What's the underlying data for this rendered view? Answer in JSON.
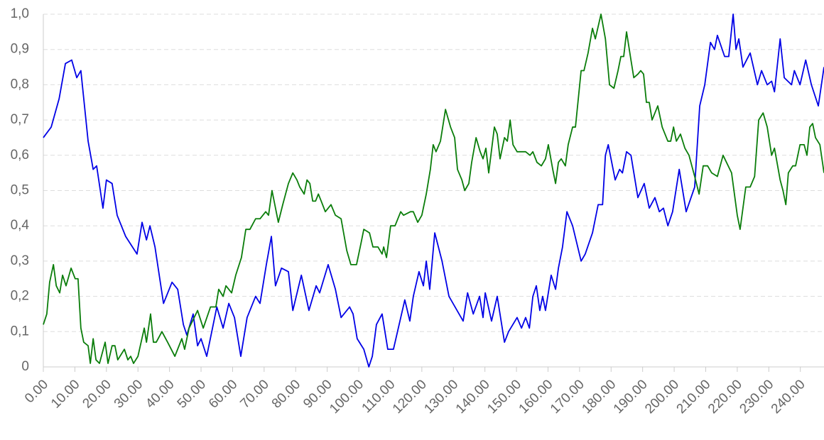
{
  "chart_data": {
    "type": "line",
    "xlim": [
      0,
      247.5
    ],
    "xticks": [
      {
        "value": 0,
        "label": "0.00"
      },
      {
        "value": 10,
        "label": "10.00"
      },
      {
        "value": 20,
        "label": "20.00"
      },
      {
        "value": 30,
        "label": "30.00"
      },
      {
        "value": 40,
        "label": "40.00"
      },
      {
        "value": 50,
        "label": "50.00"
      },
      {
        "value": 60,
        "label": "60.00"
      },
      {
        "value": 70,
        "label": "70.00"
      },
      {
        "value": 80,
        "label": "80.00"
      },
      {
        "value": 90,
        "label": "90.00"
      },
      {
        "value": 100,
        "label": "100.00"
      },
      {
        "value": 110,
        "label": "110.00"
      },
      {
        "value": 120,
        "label": "120.00"
      },
      {
        "value": 130,
        "label": "130.00"
      },
      {
        "value": 140,
        "label": "140.00"
      },
      {
        "value": 150,
        "label": "150.00"
      },
      {
        "value": 160,
        "label": "160.00"
      },
      {
        "value": 170,
        "label": "170.00"
      },
      {
        "value": 180,
        "label": "180.00"
      },
      {
        "value": 190,
        "label": "190.00"
      },
      {
        "value": 200,
        "label": "200.00"
      },
      {
        "value": 210,
        "label": "210.00"
      },
      {
        "value": 220,
        "label": "220.00"
      },
      {
        "value": 230,
        "label": "230.00"
      },
      {
        "value": 240,
        "label": "240.00"
      }
    ],
    "ylim": [
      0,
      1
    ],
    "yticks": [
      0,
      {
        "value": 0.1,
        "label": "0,1"
      },
      {
        "value": 0.2,
        "label": "0,2"
      },
      {
        "value": 0.3,
        "label": "0,3"
      },
      {
        "value": 0.4,
        "label": "0,4"
      },
      {
        "value": 0.5,
        "label": "0,5"
      },
      {
        "value": 0.6,
        "label": "0,6"
      },
      {
        "value": 0.7,
        "label": "0,7"
      },
      {
        "value": 0.8,
        "label": "0,8"
      },
      {
        "value": 0.9,
        "label": "0,9"
      },
      {
        "value": 1,
        "label": "1,0"
      }
    ],
    "grid": true,
    "series": [
      {
        "color": "#0000e6",
        "x": [
          0,
          2.5,
          5.0,
          7.0,
          9.0,
          10.6,
          11.9,
          14.2,
          15.8,
          16.9,
          18.9,
          20.0,
          21.8,
          23.4,
          26.1,
          29.7,
          31.3,
          32.7,
          33.8,
          35.4,
          38.1,
          40.8,
          42.6,
          44.4,
          45.5,
          47.5,
          48.9,
          50.0,
          51.8,
          53.4,
          55.0,
          57.0,
          58.8,
          60.6,
          62.6,
          64.6,
          67.3,
          68.7,
          70.7,
          72.3,
          73.6,
          75.5,
          77.7,
          79.1,
          81.8,
          84.2,
          86.5,
          87.6,
          90.3,
          92.6,
          94.4,
          97.1,
          98.2,
          99.5,
          101.6,
          103.2,
          104.3,
          105.6,
          107.4,
          109.2,
          111.0,
          114.6,
          116.2,
          117.3,
          119.1,
          120.5,
          121.4,
          122.5,
          124.1,
          126.4,
          128.6,
          133.1,
          134.5,
          136.3,
          138.3,
          139.4,
          140.1,
          142.1,
          143.9,
          146.2,
          147.5,
          150.2,
          151.6,
          152.9,
          154.1,
          155.2,
          156.3,
          157.4,
          158.3,
          159.2,
          161.0,
          162.4,
          163.3,
          164.6,
          166.0,
          167.8,
          170.5,
          171.8,
          174.1,
          175.9,
          177.3,
          178.2,
          179.1,
          181.3,
          182.7,
          183.6,
          184.9,
          186.3,
          188.5,
          190.5,
          192.1,
          193.9,
          195.3,
          196.6,
          198.0,
          199.5,
          201.6,
          203.8,
          206.5,
          208.1,
          209.7,
          211.5,
          212.8,
          213.7,
          216.0,
          217.3,
          218.7,
          219.6,
          220.5,
          221.8,
          224.1,
          226.4,
          227.7,
          229.5,
          230.9,
          231.8,
          233.6,
          234.9,
          237.2,
          238.1,
          239.9,
          241.7,
          243.5,
          245.7,
          247.5
        ],
        "values": [
          0.65,
          0.68,
          0.76,
          0.86,
          0.87,
          0.82,
          0.84,
          0.64,
          0.56,
          0.57,
          0.45,
          0.53,
          0.52,
          0.43,
          0.37,
          0.32,
          0.41,
          0.36,
          0.4,
          0.34,
          0.18,
          0.24,
          0.22,
          0.12,
          0.09,
          0.15,
          0.06,
          0.08,
          0.03,
          0.1,
          0.17,
          0.11,
          0.18,
          0.14,
          0.03,
          0.14,
          0.2,
          0.18,
          0.29,
          0.37,
          0.23,
          0.28,
          0.27,
          0.16,
          0.26,
          0.16,
          0.23,
          0.21,
          0.29,
          0.22,
          0.14,
          0.17,
          0.15,
          0.08,
          0.05,
          0.0,
          0.03,
          0.12,
          0.15,
          0.05,
          0.05,
          0.19,
          0.13,
          0.2,
          0.27,
          0.23,
          0.3,
          0.22,
          0.38,
          0.3,
          0.2,
          0.13,
          0.21,
          0.15,
          0.2,
          0.14,
          0.21,
          0.13,
          0.2,
          0.07,
          0.1,
          0.14,
          0.11,
          0.14,
          0.11,
          0.2,
          0.23,
          0.16,
          0.2,
          0.16,
          0.26,
          0.22,
          0.28,
          0.34,
          0.44,
          0.4,
          0.3,
          0.32,
          0.38,
          0.46,
          0.46,
          0.6,
          0.63,
          0.53,
          0.56,
          0.55,
          0.61,
          0.6,
          0.48,
          0.52,
          0.45,
          0.48,
          0.44,
          0.45,
          0.4,
          0.44,
          0.56,
          0.44,
          0.51,
          0.74,
          0.8,
          0.92,
          0.9,
          0.94,
          0.88,
          0.88,
          1.0,
          0.9,
          0.93,
          0.85,
          0.89,
          0.8,
          0.84,
          0.8,
          0.81,
          0.78,
          0.93,
          0.82,
          0.8,
          0.84,
          0.8,
          0.87,
          0.8,
          0.74,
          0.85
        ]
      },
      {
        "color": "#0a7d0a",
        "x": [
          0,
          1.1,
          2.0,
          3.2,
          4.1,
          5.2,
          6.1,
          7.2,
          8.8,
          10.1,
          11.0,
          11.9,
          12.8,
          14.2,
          14.9,
          15.8,
          16.7,
          17.8,
          19.6,
          20.5,
          21.8,
          22.7,
          23.6,
          25.7,
          26.8,
          27.7,
          28.6,
          30.0,
          32.0,
          32.7,
          34.0,
          34.9,
          35.8,
          37.6,
          39.4,
          41.7,
          43.9,
          44.8,
          46.2,
          48.9,
          50.7,
          53.0,
          54.7,
          55.6,
          57.0,
          57.9,
          59.7,
          61.0,
          62.8,
          64.2,
          65.5,
          67.3,
          68.7,
          70.5,
          71.4,
          72.5,
          74.5,
          75.9,
          77.7,
          79.1,
          80.4,
          81.3,
          82.7,
          83.6,
          84.5,
          85.4,
          86.3,
          87.2,
          88.1,
          89.4,
          91.2,
          92.6,
          94.4,
          96.2,
          97.5,
          99.3,
          100.7,
          101.6,
          103.4,
          104.5,
          106.1,
          107.4,
          107.9,
          108.8,
          110.1,
          111.5,
          113.3,
          114.2,
          116.4,
          117.3,
          118.7,
          120.0,
          121.4,
          122.7,
          123.6,
          124.5,
          125.9,
          127.5,
          129.1,
          130.4,
          131.3,
          132.7,
          133.6,
          134.9,
          135.8,
          137.2,
          138.5,
          139.4,
          140.3,
          141.2,
          143.0,
          143.9,
          144.8,
          146.2,
          147.1,
          148.0,
          148.9,
          150.2,
          151.6,
          152.9,
          154.3,
          155.2,
          156.5,
          157.9,
          159.2,
          160.1,
          161.5,
          162.4,
          163.3,
          164.2,
          165.5,
          166.4,
          167.8,
          168.7,
          170.5,
          171.4,
          172.7,
          174.1,
          175.0,
          176.8,
          178.2,
          179.5,
          180.9,
          182.2,
          183.1,
          184.0,
          184.9,
          186.3,
          187.2,
          188.5,
          189.4,
          190.3,
          191.2,
          192.1,
          193.0,
          194.8,
          196.2,
          198.0,
          198.9,
          199.8,
          200.7,
          202.0,
          203.4,
          204.7,
          206.5,
          207.9,
          209.2,
          210.6,
          211.9,
          213.7,
          215.5,
          218.2,
          220.0,
          220.9,
          222.7,
          224.1,
          225.5,
          226.8,
          228.2,
          229.5,
          230.9,
          231.8,
          233.6,
          234.5,
          235.4,
          236.2,
          237.6,
          238.5,
          239.9,
          241.2,
          242.1,
          243.0,
          243.9,
          244.8,
          246.2,
          247.5
        ],
        "values": [
          0.12,
          0.15,
          0.24,
          0.29,
          0.23,
          0.21,
          0.26,
          0.23,
          0.28,
          0.25,
          0.25,
          0.11,
          0.07,
          0.06,
          0.01,
          0.08,
          0.02,
          0.01,
          0.07,
          0.01,
          0.06,
          0.06,
          0.02,
          0.05,
          0.02,
          0.03,
          0.01,
          0.03,
          0.11,
          0.07,
          0.15,
          0.07,
          0.07,
          0.1,
          0.07,
          0.03,
          0.08,
          0.05,
          0.11,
          0.16,
          0.11,
          0.17,
          0.17,
          0.22,
          0.2,
          0.23,
          0.21,
          0.26,
          0.31,
          0.39,
          0.39,
          0.42,
          0.42,
          0.44,
          0.43,
          0.5,
          0.41,
          0.46,
          0.52,
          0.55,
          0.53,
          0.51,
          0.49,
          0.53,
          0.52,
          0.47,
          0.47,
          0.49,
          0.47,
          0.44,
          0.46,
          0.43,
          0.42,
          0.33,
          0.29,
          0.29,
          0.35,
          0.39,
          0.38,
          0.34,
          0.34,
          0.32,
          0.34,
          0.31,
          0.4,
          0.4,
          0.44,
          0.43,
          0.44,
          0.44,
          0.41,
          0.43,
          0.49,
          0.56,
          0.63,
          0.61,
          0.64,
          0.73,
          0.68,
          0.65,
          0.56,
          0.53,
          0.5,
          0.52,
          0.58,
          0.65,
          0.61,
          0.59,
          0.62,
          0.55,
          0.68,
          0.66,
          0.59,
          0.65,
          0.64,
          0.7,
          0.63,
          0.61,
          0.61,
          0.61,
          0.6,
          0.61,
          0.58,
          0.57,
          0.59,
          0.63,
          0.56,
          0.52,
          0.58,
          0.59,
          0.57,
          0.63,
          0.68,
          0.68,
          0.84,
          0.84,
          0.89,
          0.96,
          0.93,
          1.0,
          0.93,
          0.8,
          0.79,
          0.84,
          0.88,
          0.88,
          0.95,
          0.87,
          0.82,
          0.83,
          0.84,
          0.83,
          0.75,
          0.75,
          0.7,
          0.74,
          0.68,
          0.64,
          0.64,
          0.68,
          0.64,
          0.66,
          0.62,
          0.6,
          0.54,
          0.49,
          0.57,
          0.57,
          0.55,
          0.54,
          0.6,
          0.55,
          0.43,
          0.39,
          0.51,
          0.51,
          0.54,
          0.7,
          0.72,
          0.68,
          0.6,
          0.62,
          0.53,
          0.5,
          0.46,
          0.55,
          0.57,
          0.57,
          0.63,
          0.63,
          0.6,
          0.68,
          0.69,
          0.65,
          0.63,
          0.55
        ]
      }
    ]
  }
}
